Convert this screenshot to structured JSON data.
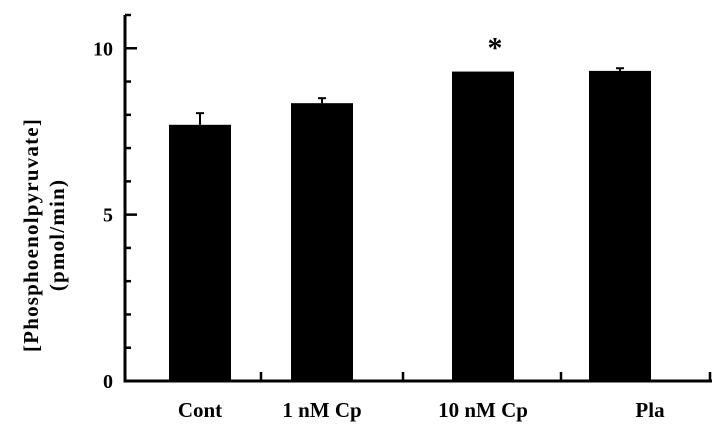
{
  "chart_data": {
    "type": "bar",
    "title": "",
    "xlabel": "",
    "ylabel_lines": [
      "[Phosphoenolpyruvate]",
      "(pmol/min)"
    ],
    "categories": [
      "Cont",
      "1 nM Cp",
      "10 nM Cp",
      "Pla"
    ],
    "values": [
      7.7,
      8.35,
      9.3,
      9.32
    ],
    "errors": [
      0.35,
      0.15,
      0.0,
      0.08
    ],
    "annotations": [
      {
        "category": "10 nM Cp",
        "text": "*"
      }
    ],
    "ylim": [
      0,
      11
    ],
    "yticks": [
      0,
      5,
      10
    ],
    "ytick_labels": [
      "0",
      "5",
      "10"
    ],
    "grid": false,
    "legend": "none",
    "colors": {
      "bar": "#000000",
      "axis": "#000000",
      "background": "#ffffff"
    }
  }
}
